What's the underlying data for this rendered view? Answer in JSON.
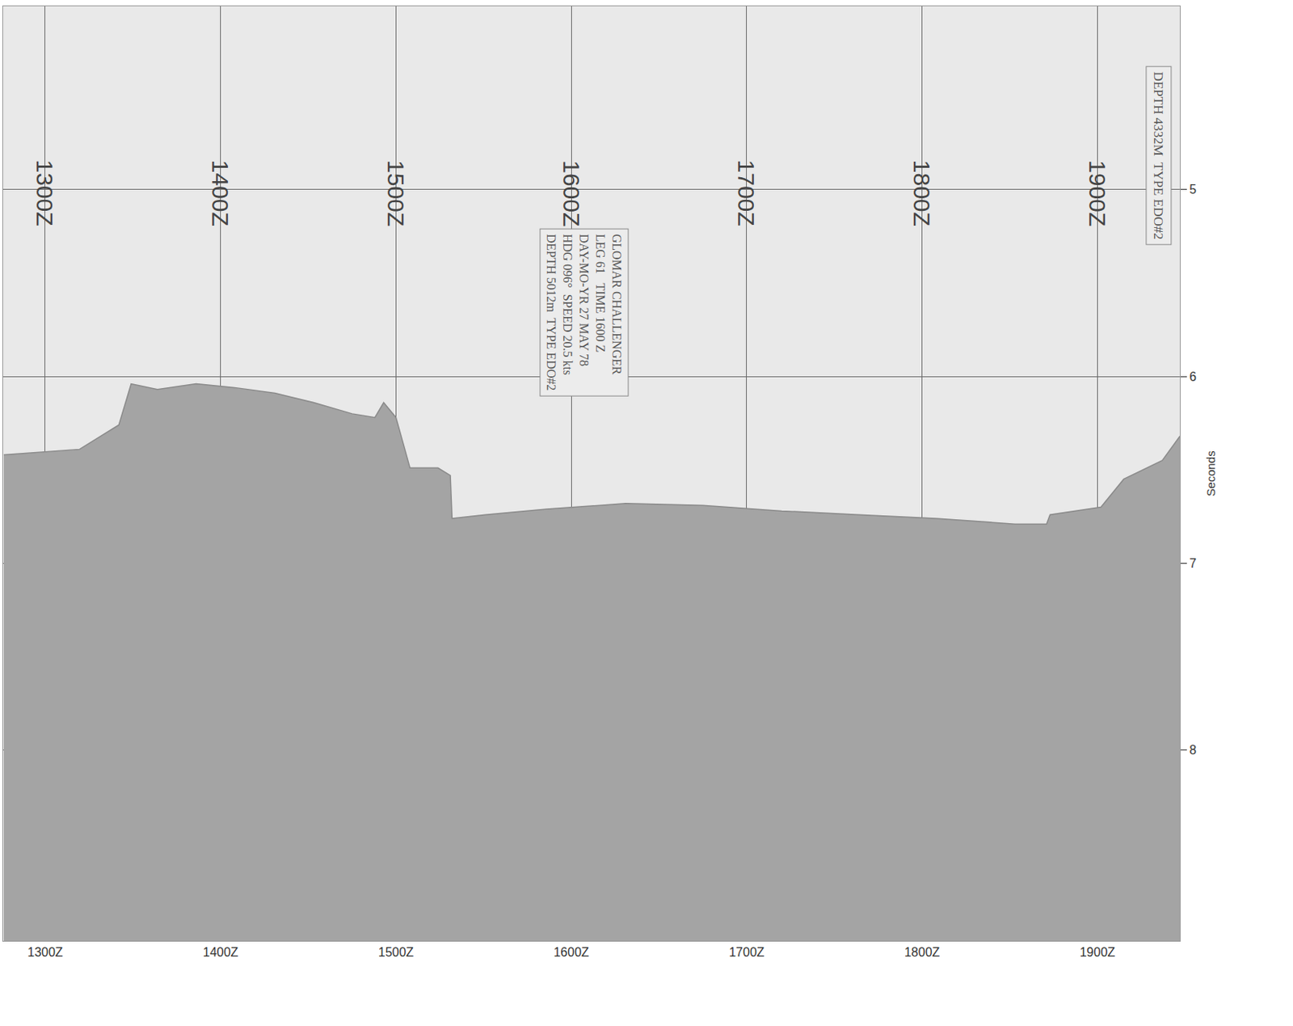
{
  "chart_data": {
    "type": "area",
    "x": [
      12.764,
      13.196,
      13.42,
      13.49,
      13.64,
      13.86,
      14.08,
      14.31,
      14.53,
      14.75,
      14.88,
      14.93,
      15.0,
      15.08,
      15.24,
      15.31,
      15.32,
      15.51,
      15.86,
      16.31,
      16.75,
      17.2,
      17.64,
      18.08,
      18.53,
      18.71,
      18.73,
      19.02,
      19.15,
      19.37,
      19.47
    ],
    "values": [
      6.42,
      6.39,
      6.26,
      6.04,
      6.07,
      6.04,
      6.06,
      6.09,
      6.14,
      6.2,
      6.22,
      6.14,
      6.22,
      6.49,
      6.49,
      6.53,
      6.76,
      6.74,
      6.71,
      6.68,
      6.69,
      6.72,
      6.74,
      6.76,
      6.79,
      6.79,
      6.74,
      6.7,
      6.55,
      6.45,
      6.32
    ],
    "color": "#a4a4a4",
    "xlim": [
      12.76,
      19.47
    ],
    "xticks": [
      {
        "value": 13,
        "label": "1300Z"
      },
      {
        "value": 14,
        "label": "1400Z"
      },
      {
        "value": 15,
        "label": "1500Z"
      },
      {
        "value": 16,
        "label": "1600Z"
      },
      {
        "value": 17,
        "label": "1700Z"
      },
      {
        "value": 18,
        "label": "1800Z"
      },
      {
        "value": 19,
        "label": "1900Z"
      }
    ],
    "ylim": [
      9.02,
      4.02
    ],
    "yticks": [
      5,
      6,
      7,
      8
    ],
    "y_label": "Seconds",
    "grid": true,
    "annotations": [
      {
        "text": "1300Z",
        "x": 13
      },
      {
        "text": "1400Z",
        "x": 14
      },
      {
        "text": "1500Z",
        "x": 15
      },
      {
        "text": "1600Z",
        "x": 16
      },
      {
        "text": "1700Z",
        "x": 17
      },
      {
        "text": "1800Z",
        "x": 18
      },
      {
        "text": "1900Z",
        "x": 19
      }
    ],
    "stamps": [
      {
        "lines": [
          "GLOMAR CHALLENGER",
          "LEG 61   TIME 1600 Z",
          "DAY-MO-YR 27 MAY 78",
          "HDG 096°  SPEED 20.5 kts",
          "DEPTH 5012m  TYPE EDO#2"
        ]
      },
      {
        "lines": [
          "DEPTH 4332M  TYPE EDO#2"
        ]
      }
    ]
  }
}
